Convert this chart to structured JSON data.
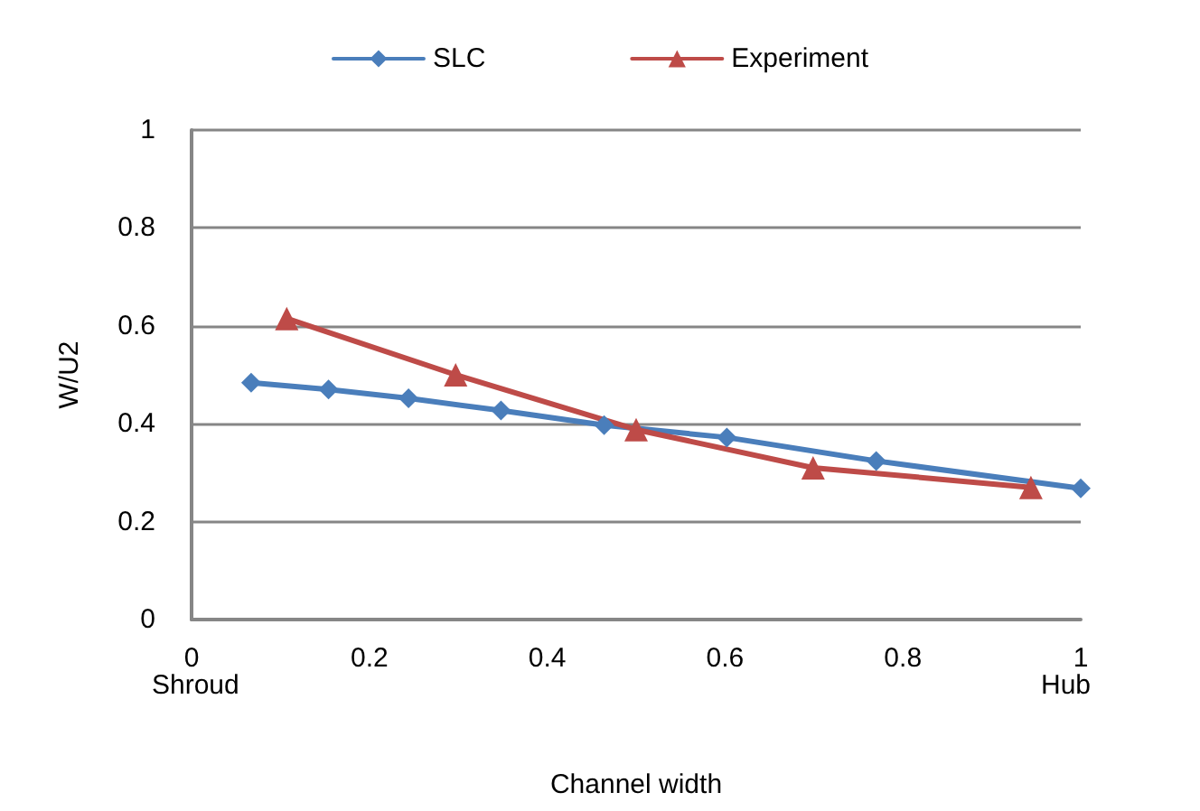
{
  "chart_data": {
    "type": "line",
    "xlabel": "Channel width",
    "ylabel": "W/U2",
    "xlim": [
      0,
      1
    ],
    "xticks": [
      0,
      0.2,
      0.4,
      0.6,
      0.8,
      1
    ],
    "ylim": [
      0,
      1
    ],
    "yticks": [
      0,
      0.2,
      0.4,
      0.6,
      0.8,
      1
    ],
    "grid": "y",
    "legend": "top",
    "series": [
      {
        "name": "SLC",
        "color": "#4a7ebb",
        "marker": "diamond",
        "x": [
          0.067,
          0.154,
          0.244,
          0.348,
          0.464,
          0.602,
          0.77,
          1.0
        ],
        "values": [
          0.484,
          0.47,
          0.452,
          0.427,
          0.397,
          0.372,
          0.324,
          0.268
        ]
      },
      {
        "name": "Experiment",
        "color": "#be4b48",
        "marker": "triangle",
        "x": [
          0.107,
          0.297,
          0.5,
          0.699,
          0.944
        ],
        "values": [
          0.615,
          0.5,
          0.388,
          0.31,
          0.27
        ]
      }
    ],
    "annotations": [
      "Shroud",
      "Hub"
    ]
  }
}
